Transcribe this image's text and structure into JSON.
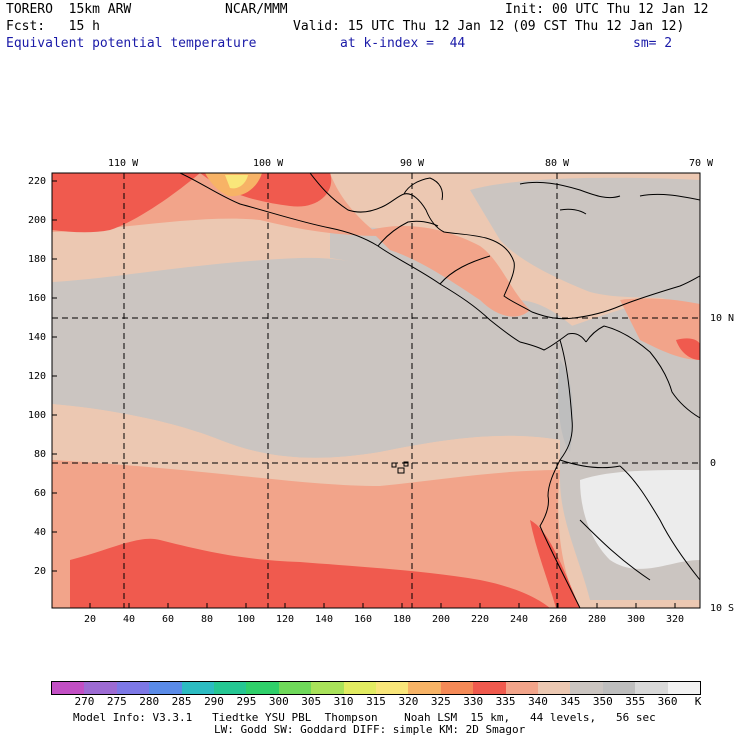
{
  "header": {
    "model": "TORERO  15km ARW",
    "org": "NCAR/MMM",
    "init": "Init: 00 UTC Thu 12 Jan 12",
    "fcst": "Fcst:   15 h",
    "valid": "Valid: 15 UTC Thu 12 Jan 12 (09 CST Thu 12 Jan 12)",
    "field": "Equivalent potential temperature",
    "level": "at k-index =  44",
    "smooth": "sm= 2"
  },
  "map": {
    "lon_labels": [
      "110 W",
      "100 W",
      "90 W",
      "80 W",
      "70 W"
    ],
    "lat_labels": [
      "10 N",
      "0",
      "10 S"
    ],
    "y_ticks": [
      "220",
      "200",
      "180",
      "160",
      "140",
      "120",
      "100",
      "80",
      "60",
      "40",
      "20"
    ],
    "x_ticks": [
      "20",
      "40",
      "60",
      "80",
      "100",
      "120",
      "140",
      "160",
      "180",
      "200",
      "220",
      "240",
      "260",
      "280",
      "300",
      "320"
    ],
    "colors": {
      "gray_dark": "#bebebe",
      "gray": "#cbc5c1",
      "tan": "#ecc8b2",
      "salmon": "#f2a48a",
      "coral": "#f05a4e",
      "orange": "#f7b366",
      "yellow": "#f9e67a",
      "light": "#ececec"
    }
  },
  "colorbar": {
    "labels": [
      "270",
      "275",
      "280",
      "285",
      "290",
      "295",
      "300",
      "305",
      "310",
      "315",
      "320",
      "325",
      "330",
      "335",
      "340",
      "345",
      "350",
      "355",
      "360"
    ],
    "unit": "K",
    "colors": [
      "#c24fc4",
      "#9d6bd3",
      "#7d78e6",
      "#5a8be8",
      "#2cbcc2",
      "#25c793",
      "#2fd06a",
      "#6fd95a",
      "#a9e25a",
      "#e2ec62",
      "#f9e67a",
      "#f7b366",
      "#f58a57",
      "#f05a4e",
      "#f2a48a",
      "#ecc8b2",
      "#cbc5c1",
      "#bebebe",
      "#d9d9d9",
      "#f2f2f2"
    ]
  },
  "footer": {
    "line1": "Model Info: V3.3.1   Tiedtke YSU PBL  Thompson    Noah LSM  15 km,   44 levels,   56 sec",
    "line2": "LW: Godd SW: Goddard DIFF: simple KM: 2D Smagor"
  }
}
